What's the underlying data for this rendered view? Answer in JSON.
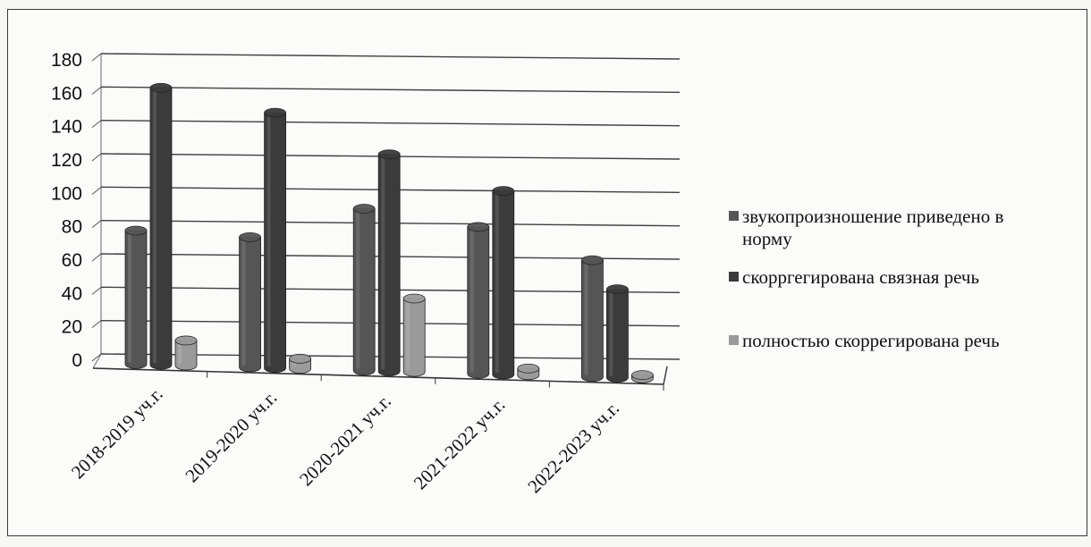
{
  "chart_data": {
    "type": "bar",
    "categories": [
      "2018-2019 уч.г.",
      "2019-2020 уч.г.",
      "2020-2021 уч.г.",
      "2021-2022 уч.г.",
      "2022-2023 уч.г."
    ],
    "series": [
      {
        "name": "звукопроизношение приведено в норму",
        "values": [
          80,
          78,
          97,
          88,
          70
        ],
        "color": "#555555"
      },
      {
        "name": "скорргегирована связная речь",
        "values": [
          166,
          153,
          130,
          110,
          53
        ],
        "color": "#3b3b3b"
      },
      {
        "name": "полностью скоррегирована речь",
        "values": [
          15,
          6,
          44,
          4,
          2
        ],
        "color": "#9a9a9a"
      }
    ],
    "yticks": [
      "0",
      "20",
      "40",
      "60",
      "80",
      "100",
      "120",
      "140",
      "160",
      "180"
    ],
    "ylim": [
      0,
      180
    ],
    "grid": true,
    "legend_position": "right"
  },
  "legend": {
    "items": [
      {
        "lines": [
          "звукопроизношение приведено в",
          "норму"
        ],
        "color": "#555555"
      },
      {
        "lines": [
          "скорргегирована связная речь"
        ],
        "color": "#3b3b3b"
      },
      {
        "lines": [
          "полностью скоррегирована речь"
        ],
        "color": "#9a9a9a"
      }
    ]
  }
}
